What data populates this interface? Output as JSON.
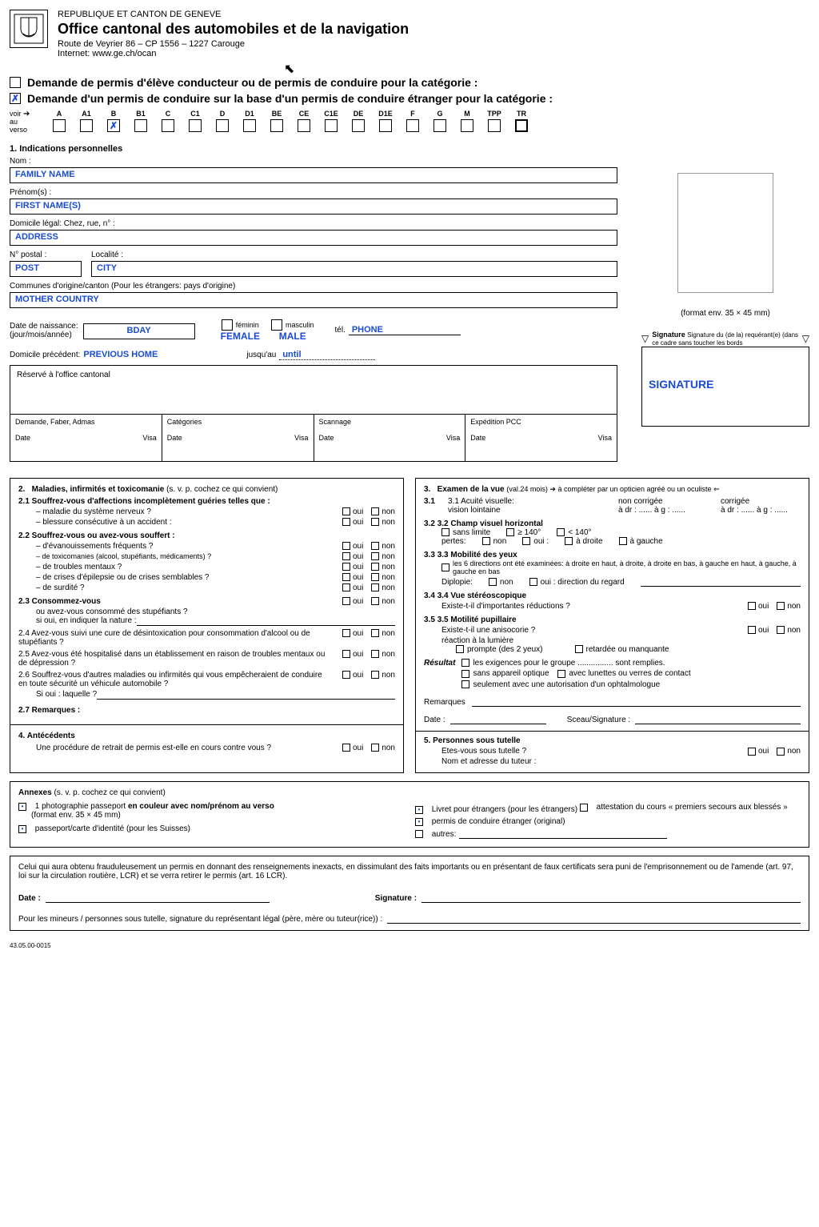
{
  "header": {
    "line1": "REPUBLIQUE ET CANTON DE GENEVE",
    "line2": "Office cantonal des automobiles et de la navigation",
    "line3": "Route de Veyrier 86 – CP 1556 – 1227 Carouge",
    "line4": "Internet: www.ge.ch/ocan"
  },
  "request": {
    "title1": "Demande de permis d'élève conducteur ou de permis de conduire pour la catégorie :",
    "title1_checked": "",
    "title2": "Demande d'un permis de conduire sur la base d'un permis de conduire étranger pour la catégorie :",
    "title2_checked": "✗",
    "cat_prefix_line1": "voir",
    "cat_prefix_line2": "au",
    "cat_prefix_line3": "verso",
    "categories": [
      "A",
      "A1",
      "B",
      "B1",
      "C",
      "C1",
      "D",
      "D1",
      "BE",
      "CE",
      "C1E",
      "DE",
      "D1E",
      "F",
      "G",
      "M",
      "TPP",
      "TR"
    ],
    "checked_category_index": 2
  },
  "s1": {
    "heading": "1.  Indications personnelles",
    "nom_label": "Nom :",
    "nom_value": "FAMILY NAME",
    "prenom_label": "Prénom(s) :",
    "prenom_value": "FIRST NAME(S)",
    "domicile_label": "Domicile légal: Chez, rue, n° :",
    "domicile_value": "ADDRESS",
    "postal_label": "N° postal :",
    "postal_value": "POST",
    "localite_label": "Localité :",
    "localite_value": "CITY",
    "commune_label": "Communes d'origine/canton  (Pour les étrangers: pays d'origine)",
    "commune_value": "MOTHER COUNTRY",
    "dob_label1": "Date de naissance:",
    "dob_label2": "(jour/mois/année)",
    "dob_value": "BDAY",
    "feminin": "féminin",
    "female_mark": "FEMALE",
    "masculin": "masculin",
    "male_mark": "MALE",
    "tel": "tél.",
    "phone": "PHONE",
    "photo_note": "(format env. 35 × 45 mm)",
    "prev_label": "Domicile précédent:",
    "prev_value": "PREVIOUS HOME",
    "until_label": "jusqu'au",
    "until_value": "until",
    "sig_label": "Signature du (de la) requérant(e) (dans ce cadre sans toucher les bords",
    "sig_value": "SIGNATURE"
  },
  "office": {
    "reserved": "Réservé à l'office cantonal",
    "cols": [
      "Demande, Faber, Admas",
      "Catégories",
      "Scannage",
      "Expédition PCC"
    ],
    "date": "Date",
    "visa": "Visa"
  },
  "s2": {
    "heading": "2.   Maladies, infirmités et toxicomanie (s. v. p. cochez ce qui convient)",
    "q21": "2.1 Souffrez-vous d'affections incomplètement guéries telles que :",
    "q21a": "– maladie du système nerveux ?",
    "q21b": "– blessure consécutive à un accident :",
    "q22": "2.2 Souffrez-vous ou avez-vous souffert :",
    "q22a": "– d'évanouissements fréquents ?",
    "q22b": "– de toxicomanies (alcool, stupéfiants, médicaments) ?",
    "q22c": "– de troubles mentaux ?",
    "q22d": "– de crises d'épilepsie ou de crises semblables ?",
    "q22e": "– de surdité ?",
    "q23": "2.3 Consommez-vous",
    "q23b": "ou avez-vous consommé des stupéfiants ?",
    "q23c": "si oui, en indiquer la nature :",
    "q24": "2.4 Avez-vous suivi une cure de désintoxication pour consommation d'alcool ou de stupéfiants ?",
    "q25": "2.5 Avez-vous été hospitalisé dans un établissement en raison de troubles mentaux ou de dépression ?",
    "q26": "2.6 Souffrez-vous d'autres maladies ou infirmités qui vous empêcheraient de conduire en toute sécurité un véhicule automobile ?",
    "q26b": "Si oui : laquelle ?",
    "q27": "2.7 Remarques :",
    "oui": "oui",
    "non": "non"
  },
  "s3": {
    "heading": "3.   Examen de la vue (val.24 mois) ➔ à compléter par un opticien agréé ou un oculiste ⇐",
    "l31": "3.1 Acuité visuelle:",
    "nc": "non corrigée",
    "c": "corrigée",
    "vl": "vision lointaine",
    "adr": "à dr : ......   à g : ......",
    "l32": "3.2 Champ visuel horizontal",
    "sl": "sans limite",
    "ge140": "≥ 140°",
    "lt140": "< 140°",
    "pertes": "pertes:",
    "ouip": "oui :",
    "ad": "à droite",
    "ag": "à gauche",
    "l33": "3.3 Mobilité des yeux",
    "l33a": "les 6 directions ont été examinées: à droite en haut, à droite, à droite en bas, à gauche en haut, à gauche, à gauche en bas",
    "dip": "Diplopie:",
    "dipoui": "oui : direction du regard",
    "l34": "3.4 Vue stéréoscopique",
    "l34a": "Existe-t-il d'importantes réductions ?",
    "l35": "3.5 Motilité pupillaire",
    "l35a": "Existe-t-il une anisocorie ?",
    "l35b": "réaction à la lumière",
    "prompte": "prompte (des 2 yeux)",
    "retard": "retardée ou manquante",
    "resultat": "Résultat",
    "r1": "les exigences pour le groupe ................ sont remplies.",
    "r2": "sans appareil optique",
    "r3": "avec lunettes ou verres de contact",
    "r4": "seulement avec une autorisation d'un ophtalmologue",
    "rem": "Remarques",
    "date": "Date :",
    "sceau": "Sceau/Signature :",
    "non": "non",
    "oui": "oui"
  },
  "s5": {
    "heading": "5.   Personnes sous tutelle",
    "q": "Etes-vous sous tutelle ?",
    "tut": "Nom et adresse du tuteur :",
    "oui": "oui",
    "non": "non"
  },
  "s4": {
    "heading": "4.   Antécédents",
    "q": "Une procédure de retrait de permis est-elle en cours contre vous ?",
    "oui": "oui",
    "non": "non"
  },
  "annexes": {
    "heading": "Annexes (s. v. p. cochez ce qui convient)",
    "a1": "1 photographie passeport en couleur avec nom/prénom au verso",
    "a1b": "(format env. 35 × 45 mm)",
    "a2": "passeport/carte d'identité (pour les Suisses)",
    "a3": "Livret pour étrangers (pour les étrangers)",
    "a4": "attestation du cours « premiers secours aux blessés »",
    "a5": "permis de conduire étranger (original)",
    "a6": "autres:",
    "a1_checked": "•",
    "a2_checked": "•",
    "a3_checked": "•",
    "a5_checked": "•"
  },
  "footer": {
    "legal": "Celui qui aura obtenu frauduleusement un permis en donnant des renseignements inexacts, en dissimulant des faits importants ou en présentant de faux certificats sera puni de l'emprisonnement ou de l'amende (art. 97, loi sur la circulation routière, LCR) et se verra retirer le permis (art. 16 LCR).",
    "date": "Date :",
    "sig": "Signature :",
    "minors": "Pour les mineurs / personnes sous tutelle, signature du représentant légal (père, mère ou tuteur(rice)) :",
    "ref": "43.05.00-0015"
  },
  "cursor_glyph": "↖"
}
